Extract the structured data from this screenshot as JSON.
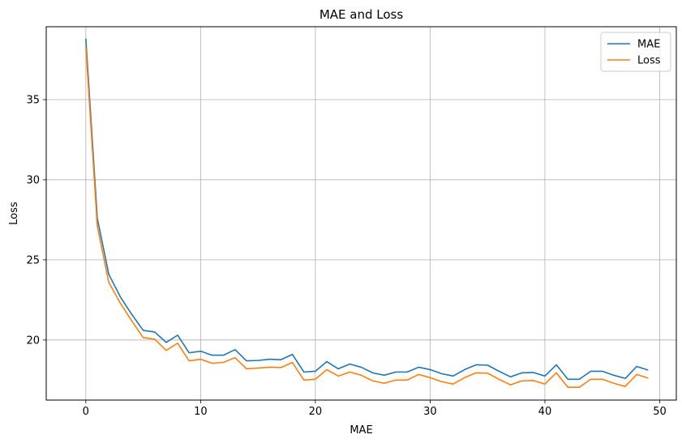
{
  "chart_data": {
    "type": "line",
    "title": "MAE and Loss",
    "xlabel": "MAE",
    "ylabel": "Loss",
    "xlim": [
      -3.45,
      51.45
    ],
    "ylim": [
      16.25,
      39.55
    ],
    "x_ticks": [
      0,
      10,
      20,
      30,
      40,
      50
    ],
    "y_ticks": [
      20,
      25,
      30,
      35
    ],
    "grid": true,
    "legend_position": "upper right",
    "x": [
      0,
      1,
      2,
      3,
      4,
      5,
      6,
      7,
      8,
      9,
      10,
      11,
      12,
      13,
      14,
      15,
      16,
      17,
      18,
      19,
      20,
      21,
      22,
      23,
      24,
      25,
      26,
      27,
      28,
      29,
      30,
      31,
      32,
      33,
      34,
      35,
      36,
      37,
      38,
      39,
      40,
      41,
      42,
      43,
      44,
      45,
      46,
      47,
      48,
      49
    ],
    "series": [
      {
        "name": "MAE",
        "color": "#1f77b4",
        "values": [
          38.8,
          27.6,
          24.1,
          22.7,
          21.6,
          20.6,
          20.5,
          19.85,
          20.3,
          19.2,
          19.3,
          19.05,
          19.05,
          19.4,
          18.7,
          18.72,
          18.8,
          18.77,
          19.1,
          18.0,
          18.05,
          18.65,
          18.2,
          18.5,
          18.3,
          17.95,
          17.8,
          18.0,
          18.0,
          18.3,
          18.15,
          17.9,
          17.75,
          18.15,
          18.45,
          18.43,
          18.05,
          17.7,
          17.95,
          17.97,
          17.75,
          18.45,
          17.55,
          17.55,
          18.05,
          18.05,
          17.8,
          17.6,
          18.35,
          18.12
        ]
      },
      {
        "name": "Loss",
        "color": "#ff7f0e",
        "values": [
          38.3,
          27.1,
          23.6,
          22.3,
          21.2,
          20.15,
          20.05,
          19.35,
          19.8,
          18.7,
          18.8,
          18.55,
          18.6,
          18.9,
          18.2,
          18.25,
          18.3,
          18.28,
          18.6,
          17.5,
          17.55,
          18.15,
          17.75,
          18.0,
          17.8,
          17.45,
          17.3,
          17.5,
          17.5,
          17.85,
          17.65,
          17.4,
          17.25,
          17.65,
          17.95,
          17.93,
          17.55,
          17.2,
          17.45,
          17.47,
          17.25,
          17.95,
          17.05,
          17.05,
          17.55,
          17.55,
          17.3,
          17.1,
          17.85,
          17.62
        ]
      }
    ]
  }
}
